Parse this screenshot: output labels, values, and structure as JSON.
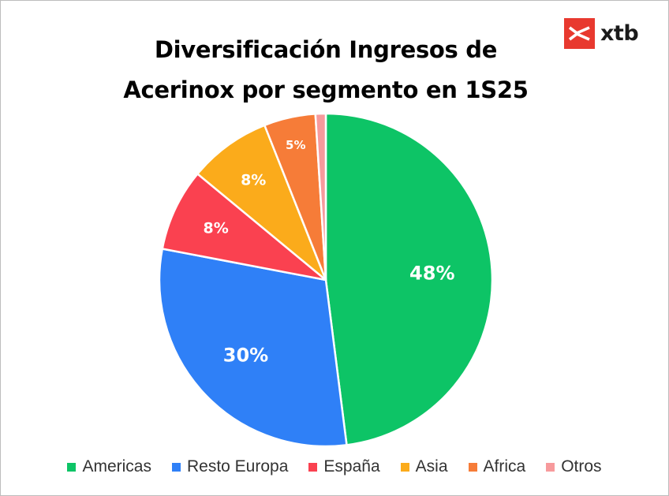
{
  "brand": {
    "name": "xtb",
    "accent": "#e8392f"
  },
  "chart_data": {
    "type": "pie",
    "title": "Diversificación  Ingresos de Acerinox por segmento en 1S25",
    "title_lines": [
      "Diversificación  Ingresos de",
      "Acerinox por segmento en 1S25"
    ],
    "legend_position": "bottom",
    "slices": [
      {
        "label": "Americas",
        "value": 48,
        "display": "48%",
        "color": "#0dc466"
      },
      {
        "label": "Resto Europa",
        "value": 30,
        "display": "30%",
        "color": "#2f80f7"
      },
      {
        "label": "España",
        "value": 8,
        "display": "8%",
        "color": "#fa4150"
      },
      {
        "label": "Asia",
        "value": 8,
        "display": "8%",
        "color": "#fbab1b"
      },
      {
        "label": "Africa",
        "value": 5,
        "display": "5%",
        "color": "#f67c38"
      },
      {
        "label": "Otros",
        "value": 1,
        "display": "",
        "color": "#f79a9c"
      }
    ]
  }
}
